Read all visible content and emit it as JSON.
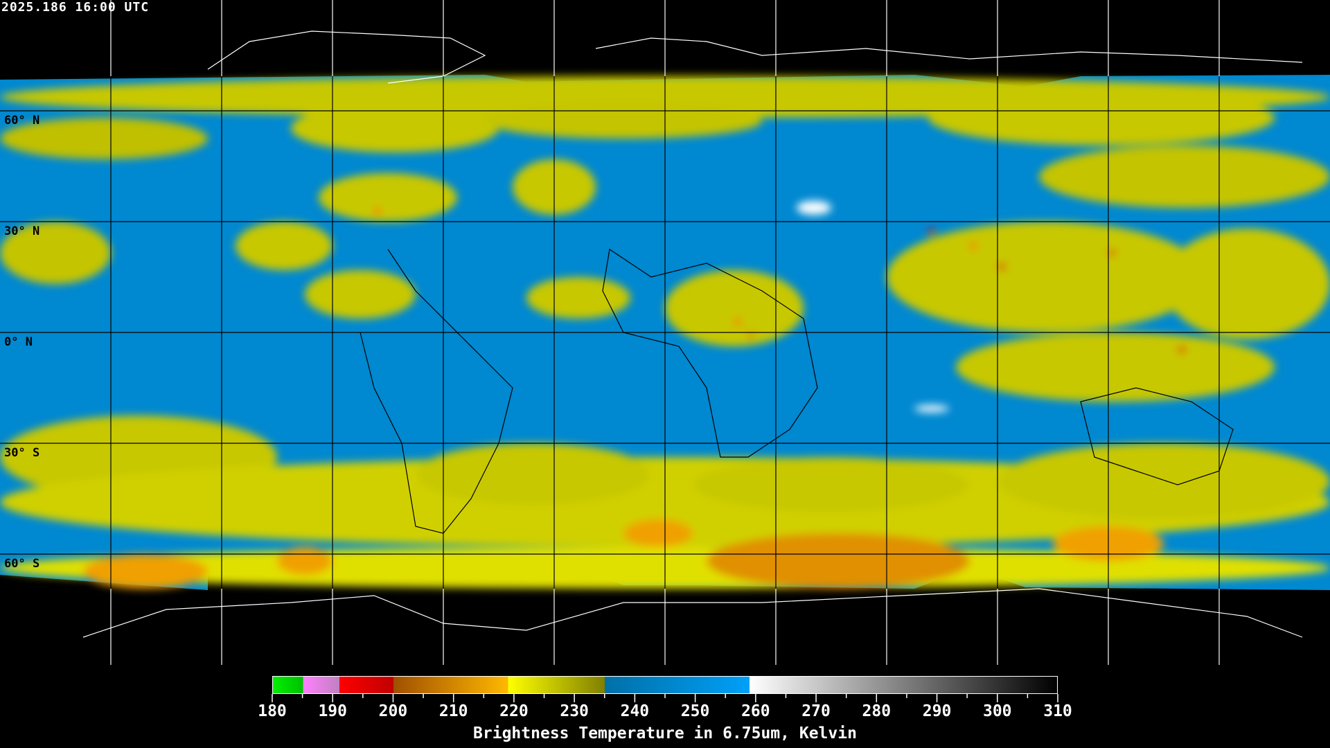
{
  "timestamp": "2025.186 16:00 UTC",
  "map": {
    "projection": "equirectangular",
    "grid": {
      "lat_step": 30,
      "lon_step": 30,
      "color": "#000000"
    },
    "lat_labels": [
      "60° N",
      "30° N",
      "0° N",
      "30° S",
      "60° S"
    ],
    "coastline_color_land_area": "#ffffff",
    "coastline_color_data_area": "#000000"
  },
  "colorbar": {
    "title": "Brightness Temperature in 6.75um, Kelvin",
    "min": 180,
    "max": 310,
    "tick_labels": [
      "180",
      "190",
      "200",
      "210",
      "220",
      "230",
      "240",
      "250",
      "260",
      "270",
      "280",
      "290",
      "300",
      "310"
    ],
    "segments": [
      {
        "from": 180,
        "to": 185,
        "colors": [
          "#00f000",
          "#00c000"
        ]
      },
      {
        "from": 185,
        "to": 191,
        "colors": [
          "#ff80ff",
          "#c080c0"
        ]
      },
      {
        "from": 191,
        "to": 200,
        "colors": [
          "#ff0000",
          "#c00000"
        ]
      },
      {
        "from": 200,
        "to": 219,
        "colors": [
          "#a05000",
          "#ffb800"
        ]
      },
      {
        "from": 219,
        "to": 235,
        "colors": [
          "#ffff00",
          "#808000"
        ]
      },
      {
        "from": 235,
        "to": 259,
        "colors": [
          "#0070a8",
          "#00a0f8"
        ]
      },
      {
        "from": 259,
        "to": 310,
        "colors": [
          "#ffffff",
          "#000000"
        ]
      }
    ]
  }
}
